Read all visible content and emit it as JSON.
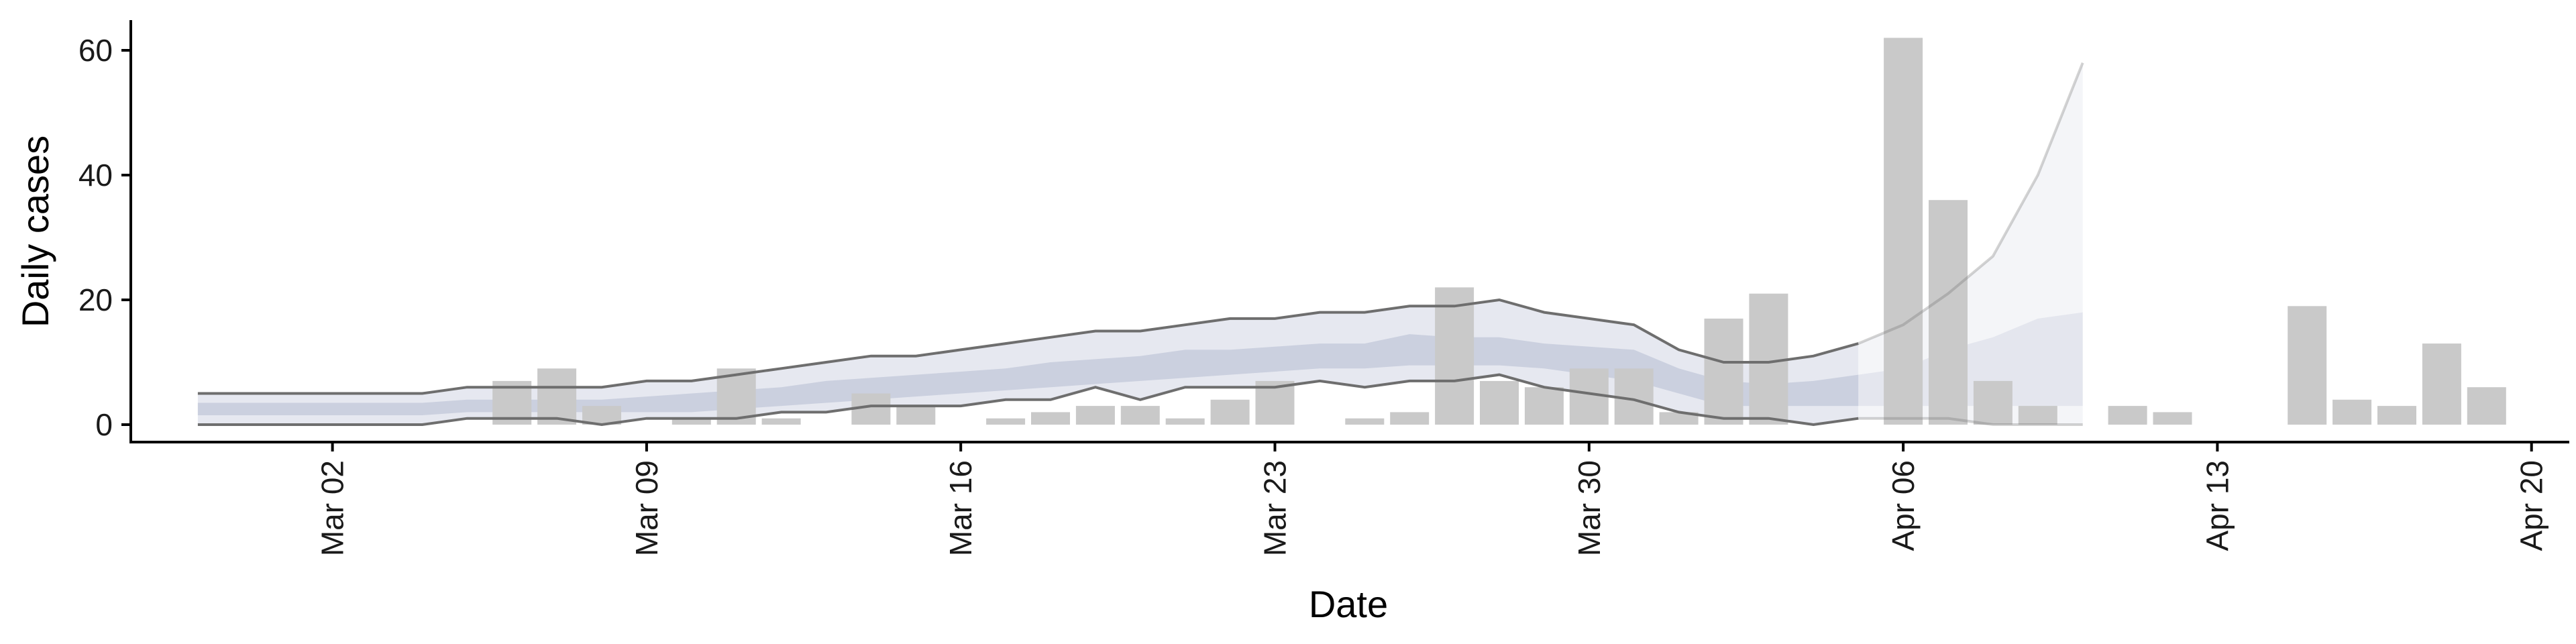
{
  "chart_data": {
    "type": "bar",
    "xlabel": "Date",
    "ylabel": "Daily cases",
    "ylim": [
      -3,
      65
    ],
    "xlim": [
      "2020-02-27",
      "2020-04-21"
    ],
    "grid": false,
    "x_ticks": [
      {
        "date": "2020-03-02",
        "label": "Mar 02"
      },
      {
        "date": "2020-03-09",
        "label": "Mar 09"
      },
      {
        "date": "2020-03-16",
        "label": "Mar 16"
      },
      {
        "date": "2020-03-23",
        "label": "Mar 23"
      },
      {
        "date": "2020-03-30",
        "label": "Mar 30"
      },
      {
        "date": "2020-04-06",
        "label": "Apr 06"
      },
      {
        "date": "2020-04-13",
        "label": "Apr 13"
      },
      {
        "date": "2020-04-20",
        "label": "Apr 20"
      }
    ],
    "y_ticks": [
      0,
      20,
      40,
      60
    ],
    "bars": {
      "color": "#c9c9c9",
      "dates": [
        "2020-03-05",
        "2020-03-06",
        "2020-03-07",
        "2020-03-08",
        "2020-03-09",
        "2020-03-10",
        "2020-03-11",
        "2020-03-12",
        "2020-03-13",
        "2020-03-14",
        "2020-03-15",
        "2020-03-16",
        "2020-03-17",
        "2020-03-18",
        "2020-03-19",
        "2020-03-20",
        "2020-03-21",
        "2020-03-22",
        "2020-03-23",
        "2020-03-24",
        "2020-03-25",
        "2020-03-26",
        "2020-03-27",
        "2020-03-28",
        "2020-03-29",
        "2020-03-30",
        "2020-03-31",
        "2020-04-01",
        "2020-04-02",
        "2020-04-03",
        "2020-04-04",
        "2020-04-05",
        "2020-04-06",
        "2020-04-07",
        "2020-04-08",
        "2020-04-09",
        "2020-04-10",
        "2020-04-11",
        "2020-04-12",
        "2020-04-13",
        "2020-04-14",
        "2020-04-15",
        "2020-04-16",
        "2020-04-17",
        "2020-04-18",
        "2020-04-19"
      ],
      "values": [
        0,
        7,
        9,
        3,
        0,
        1,
        9,
        1,
        0,
        5,
        3,
        0,
        1,
        2,
        3,
        3,
        1,
        4,
        7,
        0,
        1,
        2,
        22,
        7,
        6,
        9,
        9,
        2,
        17,
        21,
        0,
        0,
        62,
        36,
        7,
        3,
        0,
        3,
        2,
        0,
        0,
        19,
        4,
        3,
        13,
        6
      ]
    },
    "estimate": {
      "dates": [
        "2020-02-28",
        "2020-03-01",
        "2020-03-02",
        "2020-03-03",
        "2020-03-04",
        "2020-03-05",
        "2020-03-06",
        "2020-03-07",
        "2020-03-08",
        "2020-03-09",
        "2020-03-10",
        "2020-03-11",
        "2020-03-12",
        "2020-03-13",
        "2020-03-14",
        "2020-03-15",
        "2020-03-16",
        "2020-03-17",
        "2020-03-18",
        "2020-03-19",
        "2020-03-20",
        "2020-03-21",
        "2020-03-22",
        "2020-03-23",
        "2020-03-24",
        "2020-03-25",
        "2020-03-26",
        "2020-03-27",
        "2020-03-28",
        "2020-03-29",
        "2020-03-30",
        "2020-03-31",
        "2020-04-01",
        "2020-04-02",
        "2020-04-03",
        "2020-04-04",
        "2020-04-05",
        "2020-04-06",
        "2020-04-07",
        "2020-04-08",
        "2020-04-09",
        "2020-04-10"
      ],
      "upper90": [
        5,
        5,
        5,
        5,
        5,
        6,
        6,
        6,
        6,
        7,
        7,
        8,
        9,
        10,
        11,
        11,
        12,
        13,
        14,
        15,
        15,
        16,
        17,
        17,
        18,
        18,
        19,
        19,
        20,
        18,
        17,
        16,
        12,
        10,
        10,
        11,
        13,
        16,
        21,
        27,
        40,
        58
      ],
      "lower90": [
        0,
        0,
        0,
        0,
        0,
        1,
        1,
        1,
        0,
        1,
        1,
        1,
        2,
        2,
        3,
        3,
        3,
        4,
        4,
        6,
        4,
        6,
        6,
        6,
        7,
        6,
        7,
        7,
        8,
        6,
        5,
        4,
        2,
        1,
        1,
        0,
        1,
        1,
        1,
        0,
        0,
        0
      ],
      "upper50": [
        3.5,
        3.5,
        3.5,
        3.5,
        3.5,
        4,
        4,
        4,
        4,
        4.5,
        5,
        5.5,
        6,
        7,
        7.5,
        8,
        8.5,
        9,
        10,
        10.5,
        11,
        12,
        12,
        12.5,
        13,
        13,
        14.5,
        14,
        14,
        13,
        12.5,
        12,
        9,
        7,
        6.5,
        7,
        8,
        9,
        12,
        14,
        17,
        18
      ],
      "lower50": [
        1.5,
        1.5,
        1.5,
        1.5,
        1.5,
        2,
        2,
        2,
        2,
        2,
        2,
        2.5,
        3,
        3.5,
        4,
        4.5,
        5,
        5.5,
        6,
        6.5,
        7,
        7.5,
        8,
        8.5,
        9,
        9,
        9.5,
        9.5,
        9.5,
        9,
        8,
        7,
        5,
        3,
        3,
        3,
        3,
        3,
        3,
        3,
        3,
        3
      ],
      "nowcast_start": "2020-04-05",
      "band90_color": "#e6e8f0",
      "band50_color": "#c5cbdc",
      "line_color": "#6e6e6e"
    }
  }
}
